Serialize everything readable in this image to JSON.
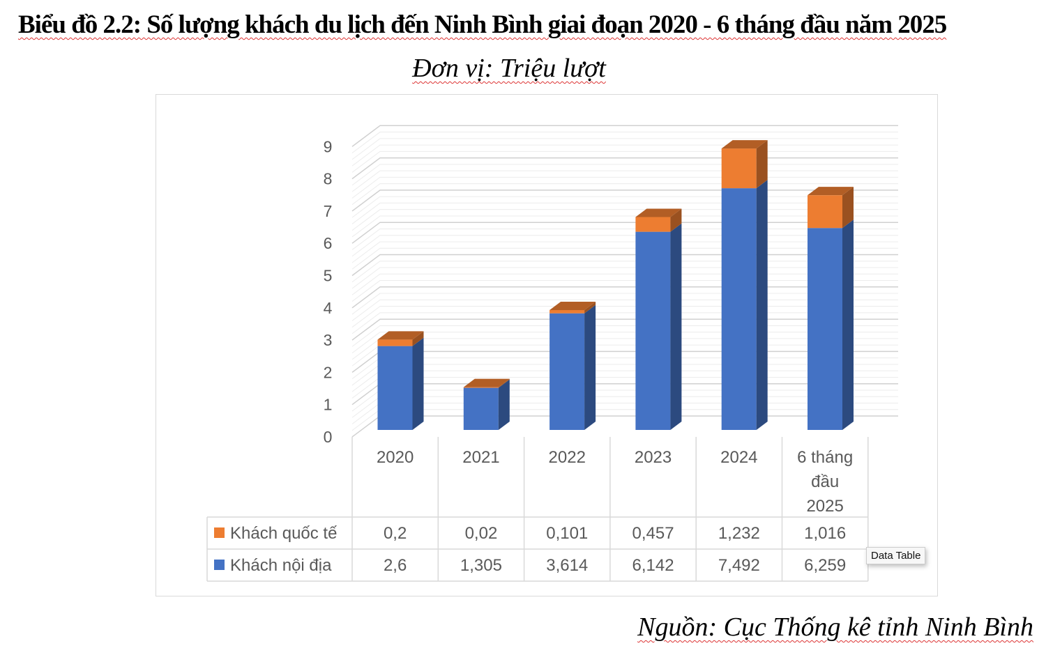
{
  "title": "Biểu đồ 2.2: Số lượng khách du lịch đến Ninh Bình giai đoạn 2020 - 6 tháng đầu năm 2025",
  "unit": "Đơn vị: Triệu lượt",
  "source": "Nguồn: Cục Thống kê tỉnh Ninh Bình",
  "tooltip": "Data Table",
  "chart_data": {
    "type": "bar",
    "stacked": true,
    "style": "3d-column-with-data-table",
    "categories": [
      "2020",
      "2021",
      "2022",
      "2023",
      "2024",
      "6 tháng đầu 2025"
    ],
    "series": [
      {
        "name": "Khách nội địa",
        "color": "#4472c4",
        "values": [
          2.6,
          1.305,
          3.614,
          6.142,
          7.492,
          6.259
        ],
        "labels": [
          "2,6",
          "1,305",
          "3,614",
          "6,142",
          "7,492",
          "6,259"
        ]
      },
      {
        "name": "Khách quốc tế",
        "color": "#ed7d31",
        "values": [
          0.2,
          0.02,
          0.101,
          0.457,
          1.232,
          1.016
        ],
        "labels": [
          "0,2",
          "0,02",
          "0,101",
          "0,457",
          "1,232",
          "1,016"
        ]
      }
    ],
    "yticks": [
      "0",
      "1",
      "2",
      "3",
      "4",
      "5",
      "6",
      "7",
      "8",
      "9"
    ],
    "ylim": [
      0,
      9
    ],
    "grid": true,
    "legend": "data-table-left"
  }
}
